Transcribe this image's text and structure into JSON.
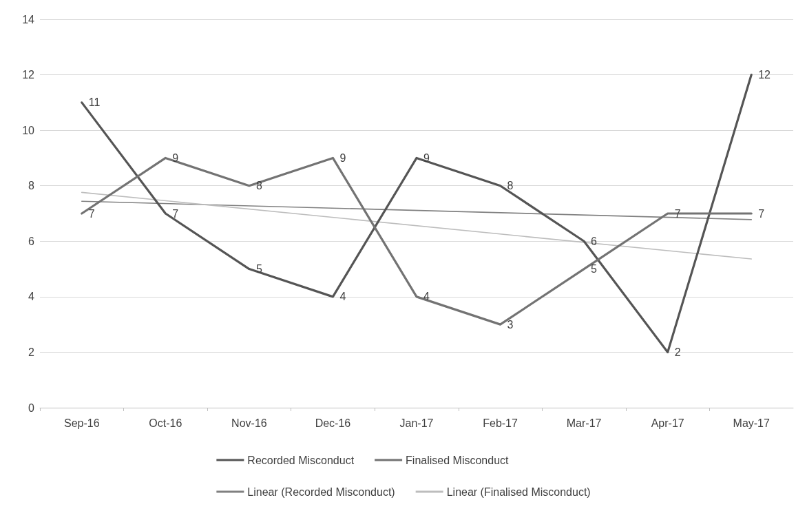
{
  "chart_data": {
    "type": "line",
    "categories": [
      "Sep-16",
      "Oct-16",
      "Nov-16",
      "Dec-16",
      "Jan-17",
      "Feb-17",
      "Mar-17",
      "Apr-17",
      "May-17"
    ],
    "series": [
      {
        "name": "Recorded Misconduct",
        "color": "#555555",
        "values": [
          11,
          7,
          5,
          4,
          9,
          8,
          6,
          2,
          12
        ],
        "value_labels": [
          "11",
          "7",
          "5",
          "4",
          "9",
          "8",
          "6",
          "2",
          "12"
        ]
      },
      {
        "name": "Finalised Misconduct",
        "color": "#737373",
        "values": [
          7,
          9,
          8,
          9,
          4,
          3,
          5,
          7,
          7
        ],
        "value_labels": [
          "7",
          "9",
          "8",
          "9",
          "4",
          "3",
          "5",
          "7",
          "7"
        ]
      },
      {
        "name": "Linear (Recorded Misconduct)",
        "color": "#808080",
        "x": [
          "Sep-16",
          "May-17"
        ],
        "values": [
          7.44,
          6.78
        ]
      },
      {
        "name": "Linear (Finalised Misconduct)",
        "color": "#bdbdbd",
        "x": [
          "Sep-16",
          "May-17"
        ],
        "values": [
          7.76,
          5.36
        ]
      }
    ],
    "ylim": [
      0,
      14
    ],
    "yticks": [
      0,
      2,
      4,
      6,
      8,
      10,
      12,
      14
    ],
    "grid": "y",
    "legend": "bottom",
    "marker": "none",
    "line_style": "solid"
  }
}
